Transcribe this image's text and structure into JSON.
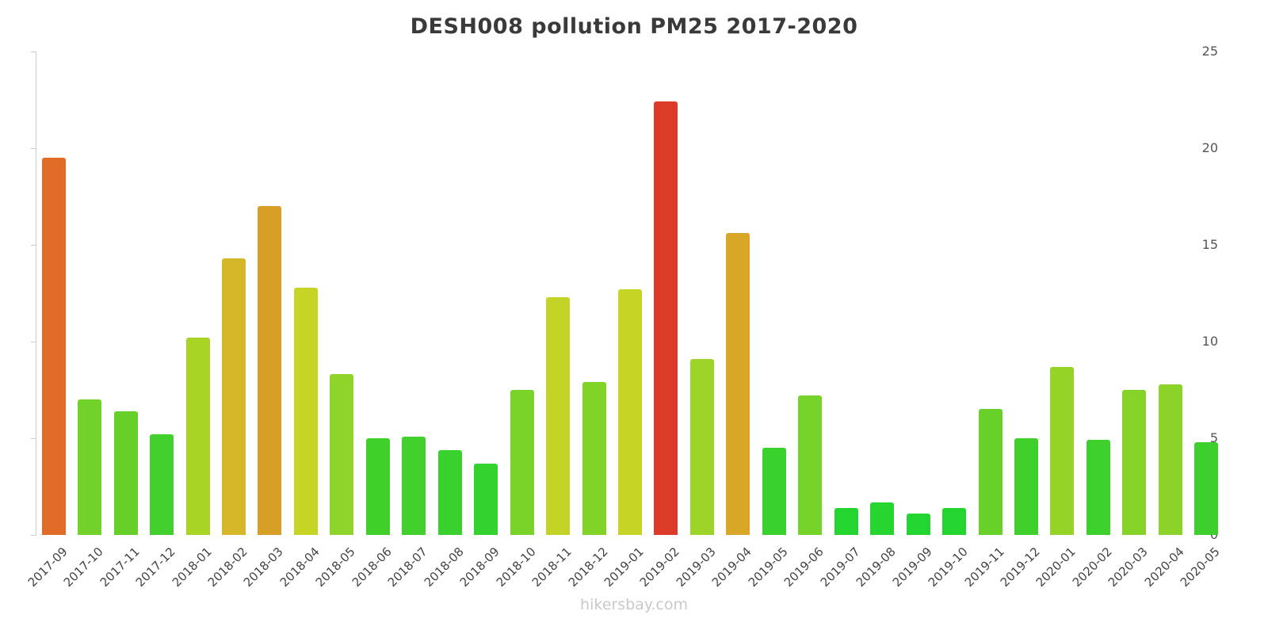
{
  "chart_data": {
    "type": "bar",
    "title": "DESH008 pollution PM25 2017-2020",
    "watermark": "hikersbay.com",
    "xlabel": "",
    "ylabel": "",
    "ylim": [
      0,
      25
    ],
    "yticks": [
      0,
      5,
      10,
      15,
      20,
      25
    ],
    "grid": false,
    "legend": false,
    "categories": [
      "2017-09",
      "2017-10",
      "2017-11",
      "2017-12",
      "2018-01",
      "2018-02",
      "2018-03",
      "2018-04",
      "2018-05",
      "2018-06",
      "2018-07",
      "2018-08",
      "2018-09",
      "2018-10",
      "2018-11",
      "2018-12",
      "2019-01",
      "2019-02",
      "2019-03",
      "2019-04",
      "2019-05",
      "2019-06",
      "2019-07",
      "2019-08",
      "2019-09",
      "2019-10",
      "2019-11",
      "2019-12",
      "2020-01",
      "2020-02",
      "2020-03",
      "2020-04",
      "2020-05"
    ],
    "values": [
      19.5,
      7.0,
      6.4,
      5.2,
      10.2,
      14.3,
      17.0,
      12.8,
      8.3,
      5.0,
      5.1,
      4.4,
      3.7,
      7.5,
      12.3,
      7.9,
      12.7,
      22.4,
      9.1,
      15.6,
      4.5,
      7.2,
      1.4,
      1.7,
      1.1,
      1.4,
      6.5,
      5.0,
      8.7,
      4.9,
      7.5,
      7.8,
      4.8
    ],
    "colors": [
      "#e06c28",
      "#72d229",
      "#66d029",
      "#43cf2c",
      "#a8d426",
      "#d6b72a",
      "#d89f27",
      "#c6d426",
      "#8ed42a",
      "#3fd02c",
      "#41d02c",
      "#38d12d",
      "#33d22e",
      "#79d328",
      "#c3d426",
      "#82d328",
      "#c6d426",
      "#dc3b27",
      "#9cd427",
      "#d8a727",
      "#39d12d",
      "#75d329",
      "#24d52f",
      "#26d52f",
      "#22d530",
      "#24d52f",
      "#68d129",
      "#3fd02c",
      "#95d427",
      "#3ed02c",
      "#86d328",
      "#8bd328",
      "#3dd02c"
    ]
  }
}
